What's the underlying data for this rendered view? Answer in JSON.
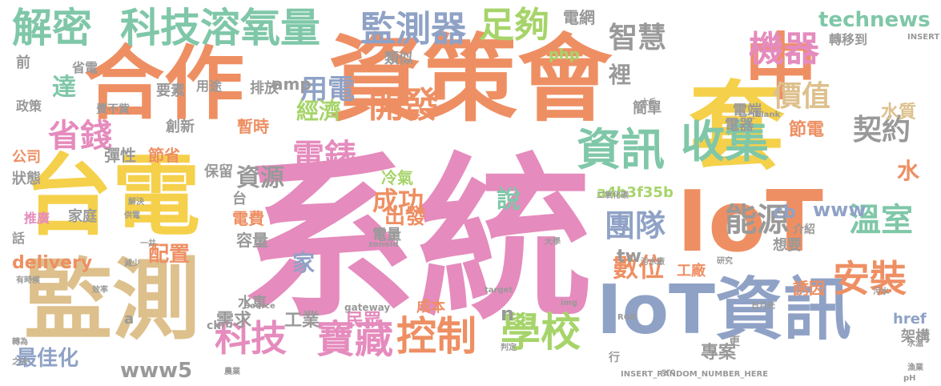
{
  "palette": [
    "#e07e5c",
    "#8fa2c6",
    "#e58bbd",
    "#ddc08c",
    "#f5d04a",
    "#a6d46a",
    "#7fc7a8",
    "#ee8f63"
  ],
  "words": [
    {
      "t": "系統",
      "c": "#e58bbd"
    },
    {
      "t": "資策會",
      "c": "#ee8f63"
    },
    {
      "t": "台電",
      "c": "#f5d04a"
    },
    {
      "t": "監測",
      "c": "#ddc08c"
    },
    {
      "t": "合作",
      "c": "#ee8f63"
    },
    {
      "t": "套",
      "c": "#f5d04a"
    },
    {
      "t": "IoT",
      "c": "#ee8f63"
    },
    {
      "t": "中",
      "c": "#ee8f63"
    },
    {
      "t": "IoT資訊",
      "c": "#8fa2c6"
    },
    {
      "t": "解密",
      "c": "#7fc7a8"
    },
    {
      "t": "科技溶氧量",
      "c": "#7fc7a8"
    },
    {
      "t": "監測器",
      "c": "#8fa2c6"
    },
    {
      "t": "足夠",
      "c": "#a6d46a"
    },
    {
      "t": "機器",
      "c": "#e58bbd"
    },
    {
      "t": "智慧",
      "c": "#999999"
    },
    {
      "t": "開發",
      "c": "#ee8f63"
    },
    {
      "t": "資訊",
      "c": "#7fc7a8"
    },
    {
      "t": "收集",
      "c": "#7fc7a8"
    },
    {
      "t": "電錶",
      "c": "#e58bbd"
    },
    {
      "t": "省錢",
      "c": "#e58bbd"
    },
    {
      "t": "學校",
      "c": "#a6d46a"
    },
    {
      "t": "控制",
      "c": "#ee8f63"
    },
    {
      "t": "寶藏",
      "c": "#e58bbd"
    },
    {
      "t": "科技",
      "c": "#e58bbd"
    },
    {
      "t": "安裝",
      "c": "#ee8f63"
    },
    {
      "t": "溫室",
      "c": "#7fc7a8"
    },
    {
      "t": "能源",
      "c": "#999999"
    },
    {
      "t": "團隊",
      "c": "#8fa2c6"
    },
    {
      "t": "價值",
      "c": "#ddc08c"
    },
    {
      "t": "契約",
      "c": "#999999"
    },
    {
      "t": "technews",
      "c": "#7fc7a8"
    },
    {
      "t": "用電",
      "c": "#8fa2c6"
    },
    {
      "t": "成功",
      "c": "#ee8f63"
    },
    {
      "t": "數位",
      "c": "#ee8f63"
    },
    {
      "t": "資源",
      "c": "#999999"
    },
    {
      "t": "達",
      "c": "#7fc7a8"
    },
    {
      "t": "家",
      "c": "#8fa2c6"
    },
    {
      "t": "說",
      "c": "#7fc7a8"
    },
    {
      "t": "水",
      "c": "#ee8f63"
    },
    {
      "t": "出發",
      "c": "#ee8f63"
    },
    {
      "t": "經濟",
      "c": "#a6d46a"
    },
    {
      "t": "配置",
      "c": "#ee8f63"
    },
    {
      "t": "水質",
      "c": "#ddc08c"
    },
    {
      "t": "節電",
      "c": "#ee8f63"
    },
    {
      "t": "電網",
      "c": "#999999"
    },
    {
      "t": "www5",
      "c": "#999999"
    },
    {
      "t": "最佳化",
      "c": "#8fa2c6"
    },
    {
      "t": "專案",
      "c": "#999999"
    },
    {
      "t": "工業",
      "c": "#999999"
    },
    {
      "t": "需求",
      "c": "#999999"
    },
    {
      "t": "民眾",
      "c": "#e58bbd"
    },
    {
      "t": "delivery",
      "c": "#ee8f63"
    },
    {
      "t": "電費",
      "c": "#ee8f63"
    },
    {
      "t": "容量",
      "c": "#999999"
    },
    {
      "t": "冷氣",
      "c": "#a6d46a"
    },
    {
      "t": "www",
      "c": "#8fa2c6"
    },
    {
      "t": "cb",
      "c": "#8fa2c6"
    },
    {
      "t": "a4b3f35b",
      "c": "#a6d46a"
    },
    {
      "t": "彈性",
      "c": "#999999"
    },
    {
      "t": "節省",
      "c": "#ee8f63"
    },
    {
      "t": "暫時",
      "c": "#ee8f63"
    },
    {
      "t": "保留",
      "c": "#999999"
    },
    {
      "t": "創新",
      "c": "#999999"
    },
    {
      "t": "電器",
      "c": "#999999"
    },
    {
      "t": "電端",
      "c": "#999999"
    },
    {
      "t": "狀態",
      "c": "#999999"
    },
    {
      "t": "公司",
      "c": "#ee8f63"
    },
    {
      "t": "排放",
      "c": "#999999"
    },
    {
      "t": "類似",
      "c": "#999999"
    },
    {
      "t": "電量",
      "c": "#999999"
    },
    {
      "t": "家庭",
      "c": "#999999"
    },
    {
      "t": "推廣",
      "c": "#e58bbd"
    },
    {
      "t": "話",
      "c": "#999999"
    },
    {
      "t": "水車",
      "c": "#999999"
    },
    {
      "t": "工廠",
      "c": "#ee8f63"
    },
    {
      "t": "tw",
      "c": "#999999"
    },
    {
      "t": "裡",
      "c": "#999999"
    },
    {
      "t": "誘因",
      "c": "#ee8f63"
    },
    {
      "t": "想要",
      "c": "#999999"
    },
    {
      "t": "成本",
      "c": "#ee8f63"
    },
    {
      "t": "php",
      "c": "#a6d46a"
    },
    {
      "t": "amp",
      "c": "#999999"
    },
    {
      "t": "href",
      "c": "#8fa2c6"
    },
    {
      "t": "架構",
      "c": "#999999"
    },
    {
      "t": "簡單",
      "c": "#999999"
    },
    {
      "t": "要素",
      "c": "#999999"
    },
    {
      "t": "用途",
      "c": "#999999"
    },
    {
      "t": "省電",
      "c": "#999999"
    },
    {
      "t": "前",
      "c": "#999999"
    },
    {
      "t": "政策",
      "c": "#999999"
    },
    {
      "t": "轉移到",
      "c": "#999999"
    },
    {
      "t": "介紹",
      "c": "#999999"
    },
    {
      "t": "更",
      "c": "#999999"
    },
    {
      "t": "行",
      "c": "#999999"
    },
    {
      "t": "台",
      "c": "#999999"
    },
    {
      "t": "ck",
      "c": "#999999"
    },
    {
      "t": "費不貲",
      "c": "#999999"
    },
    {
      "t": "INSERT_RANDOM_NUMBER_HERE",
      "c": "#999999"
    },
    {
      "t": "gateway",
      "c": "#999999"
    },
    {
      "t": "Source",
      "c": "#999999"
    },
    {
      "t": "target",
      "c": "#999999"
    },
    {
      "t": "RGB",
      "c": "#999999"
    },
    {
      "t": "zoneId",
      "c": "#999999"
    },
    {
      "t": "_blank",
      "c": "#999999"
    },
    {
      "t": "INSERT",
      "c": "#999999"
    },
    {
      "t": "img",
      "c": "#999999"
    },
    {
      "t": "src",
      "c": "#999999"
    },
    {
      "t": "pH",
      "c": "#999999"
    },
    {
      "t": "n",
      "c": "#999999"
    },
    {
      "t": "a",
      "c": "#999999"
    },
    {
      "t": "一共",
      "c": "#999999"
    },
    {
      "t": "大學",
      "c": "#999999"
    },
    {
      "t": "大戶",
      "c": "#999999"
    },
    {
      "t": "日月光",
      "c": "#999999"
    },
    {
      "t": "污水",
      "c": "#999999"
    },
    {
      "t": "污水廠",
      "c": "#999999"
    },
    {
      "t": "二氧化碳",
      "c": "#999999"
    },
    {
      "t": "研究",
      "c": "#999999"
    },
    {
      "t": "解決",
      "c": "#999999"
    },
    {
      "t": "供電",
      "c": "#999999"
    },
    {
      "t": "減少",
      "c": "#999999"
    },
    {
      "t": "判定",
      "c": "#999999"
    },
    {
      "t": "效率",
      "c": "#999999"
    },
    {
      "t": "漁業",
      "c": "#999999"
    },
    {
      "t": "水溫",
      "c": "#999999"
    },
    {
      "t": "農業",
      "c": "#999999"
    },
    {
      "t": "之外",
      "c": "#999999"
    },
    {
      "t": "轉為",
      "c": "#999999"
    },
    {
      "t": "有時候",
      "c": "#999999"
    },
    {
      "t": "集外籍",
      "c": "#999999"
    },
    {
      "t": "調整",
      "c": "#999999"
    }
  ]
}
